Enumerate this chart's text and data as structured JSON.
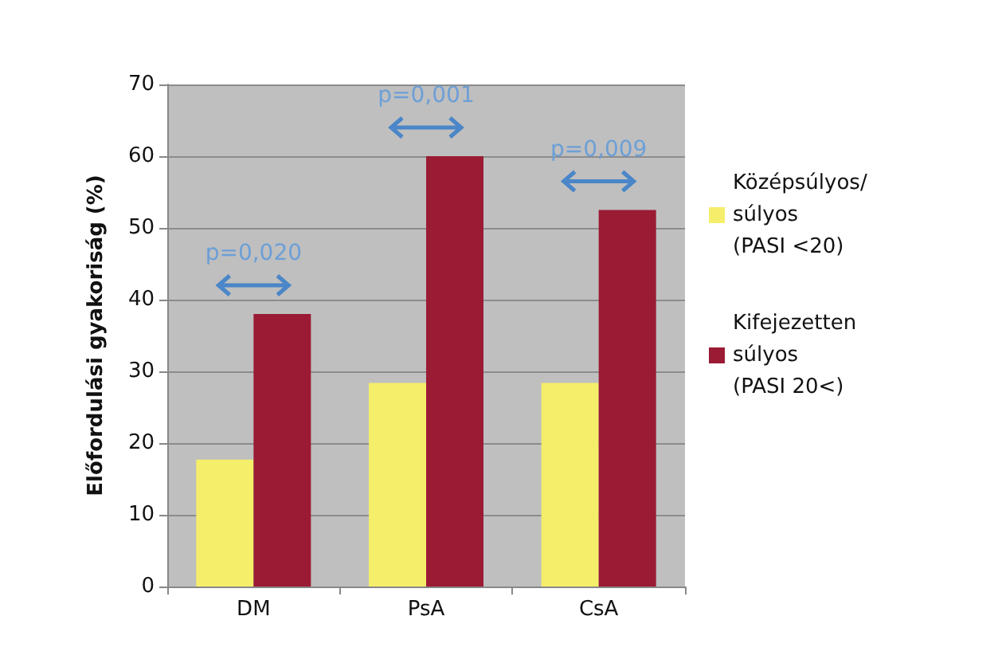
{
  "chart_data": {
    "type": "bar",
    "ylabel": "Előfordulási gyakoriság (%)",
    "categories": [
      "DM",
      "PsA",
      "CsA"
    ],
    "series": [
      {
        "name": "Középsúlyos/\nsúlyos\n(PASI <20)",
        "color": "#f5ee6a",
        "values": [
          17.7,
          28.4,
          28.4
        ]
      },
      {
        "name": "Kifejezetten\nsúlyos\n(PASI 20<)",
        "color": "#9b1b34",
        "values": [
          38,
          60,
          52.5
        ]
      }
    ],
    "ylim": [
      0,
      70
    ],
    "yticks": [
      0,
      10,
      20,
      30,
      40,
      50,
      60,
      70
    ],
    "grid": "y",
    "legend": "right",
    "annotations": [
      "p=0,020",
      "p=0,001",
      "p=0,009"
    ]
  }
}
